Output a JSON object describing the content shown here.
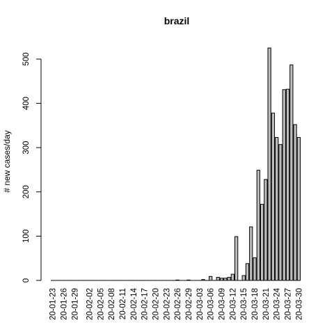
{
  "chart_data": {
    "type": "bar",
    "title": "brazil",
    "xlabel": "",
    "ylabel": "# new cases/day",
    "ylim": [
      0,
      530
    ],
    "yticks": [
      0,
      100,
      200,
      300,
      400,
      500
    ],
    "grid": false,
    "legend": "none",
    "bar_fill": "#bebebe",
    "bar_stroke": "#000000",
    "categories": [
      "20-01-23",
      "20-01-24",
      "20-01-25",
      "20-01-26",
      "20-01-27",
      "20-01-28",
      "20-01-29",
      "20-01-30",
      "20-01-31",
      "20-02-01",
      "20-02-02",
      "20-02-03",
      "20-02-04",
      "20-02-05",
      "20-02-06",
      "20-02-07",
      "20-02-08",
      "20-02-09",
      "20-02-10",
      "20-02-11",
      "20-02-12",
      "20-02-13",
      "20-02-14",
      "20-02-15",
      "20-02-16",
      "20-02-17",
      "20-02-18",
      "20-02-19",
      "20-02-20",
      "20-02-21",
      "20-02-22",
      "20-02-23",
      "20-02-24",
      "20-02-25",
      "20-02-26",
      "20-02-27",
      "20-02-28",
      "20-02-29",
      "20-03-01",
      "20-03-02",
      "20-03-03",
      "20-03-04",
      "20-03-05",
      "20-03-06",
      "20-03-07",
      "20-03-08",
      "20-03-09",
      "20-03-10",
      "20-03-11",
      "20-03-12",
      "20-03-13",
      "20-03-14",
      "20-03-15",
      "20-03-16",
      "20-03-17",
      "20-03-18",
      "20-03-19",
      "20-03-20",
      "20-03-21",
      "20-03-22",
      "20-03-23",
      "20-03-24",
      "20-03-25",
      "20-03-26",
      "20-03-27",
      "20-03-28",
      "20-03-29",
      "20-03-30"
    ],
    "values": [
      0,
      0,
      0,
      0,
      0,
      0,
      0,
      0,
      0,
      0,
      0,
      0,
      0,
      0,
      0,
      0,
      0,
      0,
      0,
      0,
      0,
      0,
      0,
      0,
      0,
      0,
      0,
      0,
      0,
      0,
      0,
      0,
      0,
      0,
      1,
      0,
      0,
      1,
      0,
      0,
      0,
      2,
      0,
      9,
      0,
      7,
      5,
      5,
      7,
      14,
      99,
      0,
      11,
      38,
      121,
      51,
      249,
      172,
      228,
      525,
      378,
      323,
      307,
      431,
      432,
      487,
      352,
      323
    ],
    "tick_labels": [
      "20-01-23",
      "20-01-26",
      "20-01-29",
      "20-02-02",
      "20-02-05",
      "20-02-08",
      "20-02-11",
      "20-02-14",
      "20-02-17",
      "20-02-20",
      "20-02-23",
      "20-02-26",
      "20-02-29",
      "20-03-03",
      "20-03-06",
      "20-03-09",
      "20-03-12",
      "20-03-15",
      "20-03-18",
      "20-03-21",
      "20-03-24",
      "20-03-27",
      "20-03-30"
    ]
  }
}
